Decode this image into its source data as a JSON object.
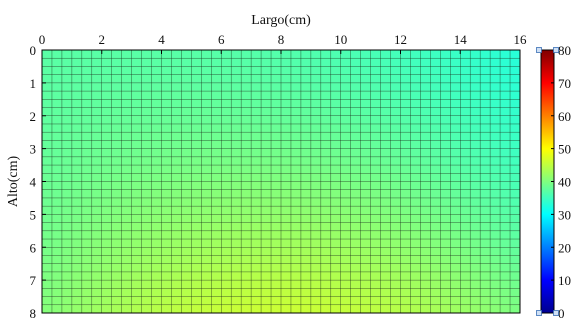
{
  "chart_data": {
    "type": "heatmap",
    "title": "",
    "xlabel": "Largo(cm)",
    "ylabel": "Alto(cm)",
    "xlim": [
      0,
      16
    ],
    "ylim": [
      0,
      8
    ],
    "y_reversed": true,
    "x_axis_position": "top",
    "x_ticks": [
      0,
      2,
      4,
      6,
      8,
      10,
      12,
      14,
      16
    ],
    "y_ticks": [
      0,
      1,
      2,
      3,
      4,
      5,
      6,
      7,
      8
    ],
    "grid": true,
    "grid_cols": 48,
    "grid_rows": 32,
    "colormap": "jet",
    "colorbar": {
      "min": 0,
      "max": 80,
      "ticks": [
        0,
        10,
        20,
        30,
        40,
        50,
        60,
        70,
        80
      ],
      "position": "right"
    },
    "value_model": {
      "description_values": "approximate field: ~35 at top-right, ~37 across top, rising to ~46 at bottom center (x≈8), ~43 at bottom corners",
      "corner_values": {
        "top_left": 37,
        "top_right": 33,
        "bottom_center": 46,
        "bottom_left": 43,
        "bottom_right": 42
      }
    }
  }
}
